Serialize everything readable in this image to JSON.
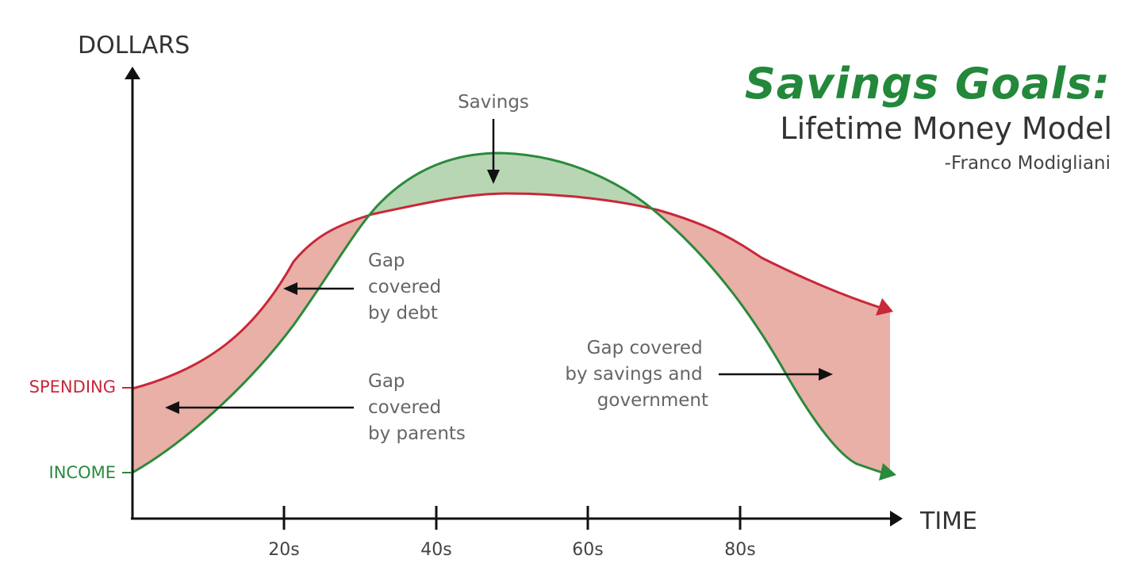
{
  "title": {
    "main": "Savings Goals:",
    "subtitle": "Lifetime Money Model",
    "author": "-Franco Modigliani"
  },
  "axes": {
    "y_label": "DOLLARS",
    "x_label": "TIME",
    "x_ticks": [
      "20s",
      "40s",
      "60s",
      "80s"
    ]
  },
  "curves": {
    "spending_label": "SPENDING",
    "income_label": "INCOME"
  },
  "annotations": {
    "savings": "Savings",
    "gap_debt": [
      "Gap",
      "covered",
      "by debt"
    ],
    "gap_parents": [
      "Gap",
      "covered",
      "by parents"
    ],
    "gap_savings_gov": [
      "Gap covered",
      "by savings and",
      "government"
    ]
  },
  "colors": {
    "spending": "#c8283a",
    "income": "#2a8a3c",
    "gap_fill": "#e8b0a6",
    "savings_fill": "#b8d6b4",
    "axis": "#111111",
    "text": "#666666"
  }
}
